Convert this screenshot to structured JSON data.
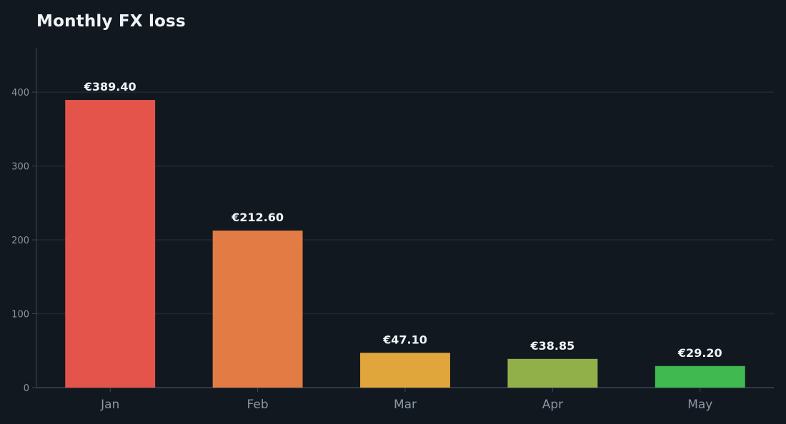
{
  "chart_data": {
    "type": "bar",
    "title": "Monthly FX loss",
    "xlabel": "",
    "ylabel": "",
    "categories": [
      "Jan",
      "Feb",
      "Mar",
      "Apr",
      "May"
    ],
    "values": [
      389.4,
      212.6,
      47.1,
      38.85,
      29.2
    ],
    "data_labels": [
      "€389.40",
      "€212.60",
      "€47.10",
      "€38.85",
      "€29.20"
    ],
    "bar_colors": [
      "#e5544b",
      "#e37b44",
      "#e0a53b",
      "#92b04a",
      "#3fb950"
    ],
    "yticks": [
      0,
      100,
      200,
      300,
      400
    ],
    "ylim": [
      0,
      460
    ],
    "grid": true,
    "legend": "none"
  }
}
